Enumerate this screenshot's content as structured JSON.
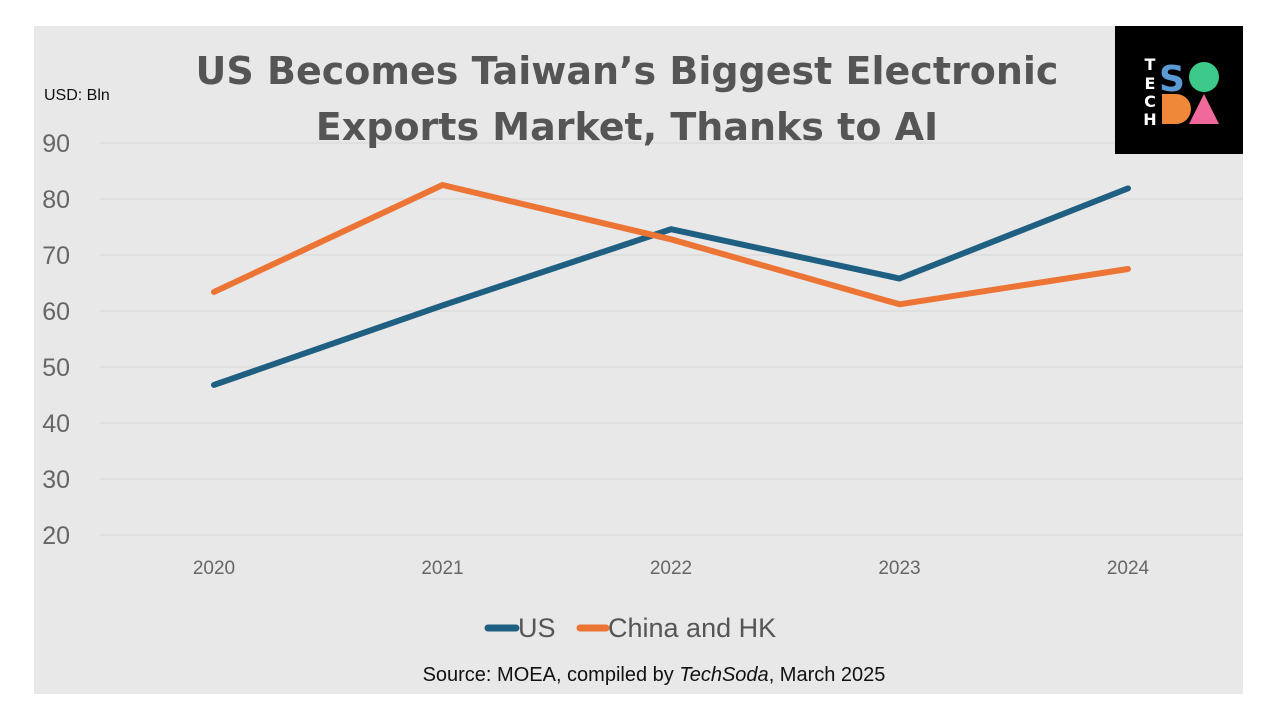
{
  "chart_data": {
    "type": "line",
    "title_lines": [
      "US Becomes Taiwan’s Biggest Electronic",
      "Exports Market, Thanks to AI"
    ],
    "unit_label": "USD: Bln",
    "x": [
      "2020",
      "2021",
      "2022",
      "2023",
      "2024"
    ],
    "y_ticks": [
      90,
      80,
      70,
      60,
      50,
      40,
      30,
      20
    ],
    "ylim": [
      20,
      90
    ],
    "grid": true,
    "legend_position": "bottom",
    "series": [
      {
        "name": "US",
        "color": "#1f5f82",
        "values": [
          46.8,
          61.0,
          74.6,
          65.8,
          81.9
        ]
      },
      {
        "name": "China and HK",
        "color": "#ec7434",
        "values": [
          63.4,
          82.5,
          72.8,
          61.2,
          67.5
        ]
      }
    ]
  },
  "source": {
    "prefix": "Source: MOEA, compiled by ",
    "brand": "TechSoda",
    "suffix": ", March 2025"
  },
  "logo": {
    "letters": [
      "T",
      "E",
      "C",
      "H",
      "S",
      "O",
      "D",
      "A"
    ],
    "colors": {
      "background": "#000000",
      "s": "#5b9bd5",
      "o": "#3cc98a",
      "d": "#f0883a",
      "a": "#ef6a9a"
    }
  }
}
